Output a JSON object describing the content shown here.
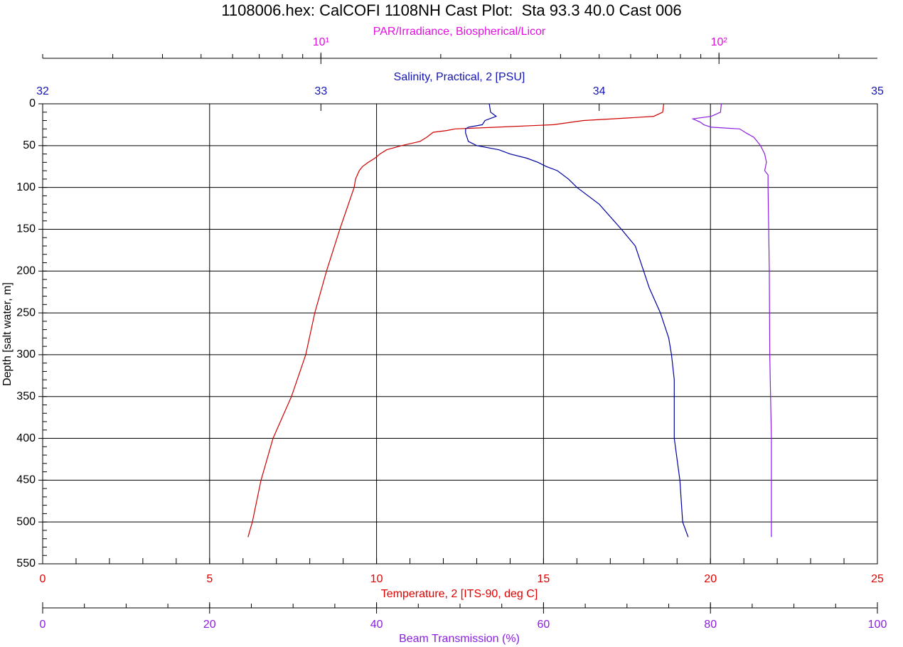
{
  "chart_data": {
    "type": "line",
    "title": "1108006.hex: CalCOFI 1108NH Cast Plot:  Sta 93.3 40.0 Cast 006",
    "ylabel": "Depth [salt water, m]",
    "ylim": [
      0,
      550
    ],
    "yticks": [
      0,
      50,
      100,
      150,
      200,
      250,
      300,
      350,
      400,
      450,
      500,
      550
    ],
    "y_reversed": true,
    "yminor_step": 10,
    "grid": true,
    "xlim": [
      0,
      25
    ],
    "xticks": [
      0,
      5,
      10,
      15,
      20,
      25
    ],
    "xminor_step": 1,
    "xcolor": "#e00000",
    "x2lim": [
      32,
      35
    ],
    "x2ticks": [
      32,
      33,
      34,
      35
    ],
    "x2color": "#1414b4",
    "x3lim": [
      0,
      100
    ],
    "x3ticks": [
      0,
      20,
      40,
      60,
      80,
      100
    ],
    "x3minor_step": 5,
    "x3color": "#8a1ee0",
    "x4label": "PAR/Irradiance, Biospherical/Licor",
    "x4lim": [
      2,
      250
    ],
    "x4scale": "log",
    "x4ticks": [
      {
        "value": 10,
        "label": "10¹"
      },
      {
        "value": 100,
        "label": "10²"
      }
    ],
    "x4color": "#e010e0",
    "series": [
      {
        "name": "Temperature, 2 [ITS-90, deg C]",
        "color": "#d00000",
        "axis": "x",
        "depth": [
          0,
          10,
          15,
          17,
          20,
          25,
          28,
          30,
          32,
          34,
          40,
          45,
          50,
          55,
          60,
          65,
          70,
          75,
          80,
          90,
          100,
          150,
          200,
          250,
          300,
          350,
          400,
          450,
          500,
          518
        ],
        "values": [
          18.6,
          18.57,
          18.3,
          17.5,
          16.2,
          15.3,
          13.6,
          12.35,
          12.1,
          11.7,
          11.5,
          11.3,
          10.75,
          10.3,
          10.1,
          9.95,
          9.75,
          9.58,
          9.48,
          9.37,
          9.33,
          8.9,
          8.5,
          8.15,
          7.88,
          7.45,
          6.9,
          6.54,
          6.28,
          6.15
        ]
      },
      {
        "name": "Salinity, Practical, 2 [PSU]",
        "color": "#0000a0",
        "axis": "x2",
        "depth": [
          0,
          10,
          15,
          20,
          25,
          28,
          30,
          35,
          40,
          45,
          50,
          55,
          60,
          65,
          70,
          75,
          80,
          90,
          100,
          120,
          150,
          170,
          200,
          220,
          250,
          280,
          300,
          330,
          350,
          400,
          450,
          500,
          518
        ],
        "values": [
          33.605,
          33.61,
          33.63,
          33.59,
          33.58,
          33.53,
          33.52,
          33.52,
          33.525,
          33.53,
          33.56,
          33.64,
          33.68,
          33.74,
          33.78,
          33.81,
          33.85,
          33.89,
          33.92,
          34.0,
          34.08,
          34.13,
          34.16,
          34.18,
          34.22,
          34.25,
          34.26,
          34.27,
          34.27,
          34.27,
          34.29,
          34.3,
          34.32
        ]
      },
      {
        "name": "Beam Transmission (%)",
        "color": "#8a1ee0",
        "axis": "x3",
        "depth": [
          0,
          10,
          15,
          18,
          22,
          25,
          28,
          30,
          35,
          40,
          45,
          50,
          60,
          70,
          80,
          85,
          100,
          200,
          300,
          400,
          500,
          518
        ],
        "values": [
          81.3,
          81.2,
          80.1,
          77.9,
          78.8,
          79.2,
          80.1,
          83.5,
          84.3,
          85.2,
          85.6,
          86.0,
          86.5,
          86.7,
          86.5,
          86.9,
          86.9,
          87.05,
          87.1,
          87.3,
          87.3,
          87.3
        ]
      }
    ]
  }
}
